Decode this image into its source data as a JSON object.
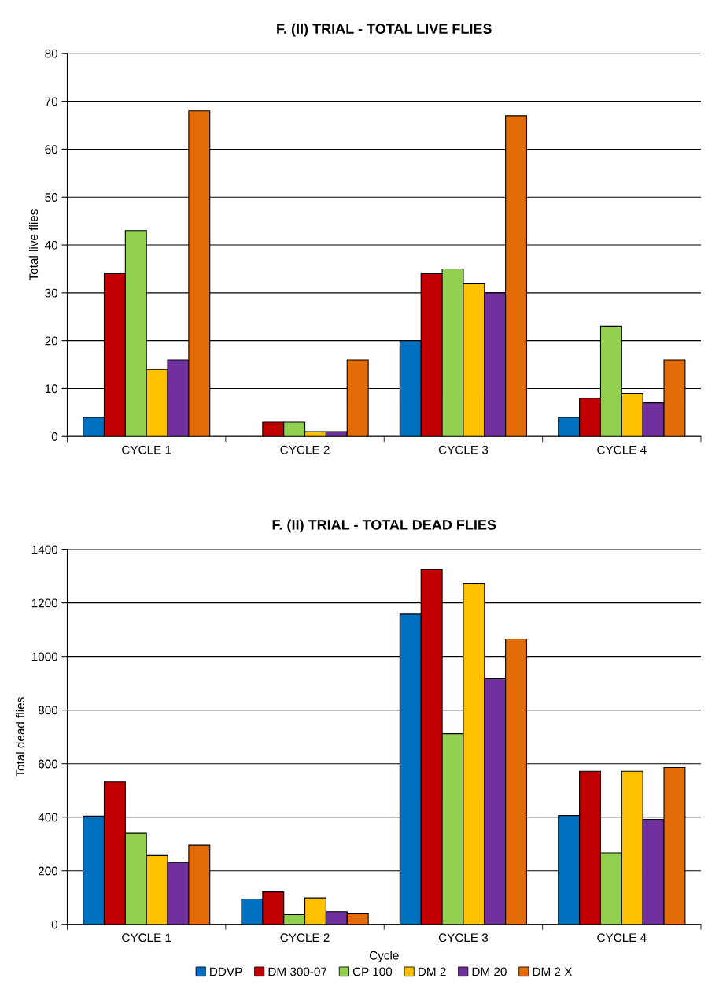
{
  "chart_data": [
    {
      "type": "bar",
      "title": "F. (II) TRIAL - TOTAL LIVE FLIES",
      "ylabel": "Total live flies",
      "categories": [
        "CYCLE 1",
        "CYCLE 2",
        "CYCLE 3",
        "CYCLE 4"
      ],
      "ylim": [
        0,
        80
      ],
      "yticks": [
        0,
        10,
        20,
        30,
        40,
        50,
        60,
        70,
        80
      ],
      "grid": "y",
      "legend": false,
      "series": [
        {
          "color": "#0070c0",
          "values": [
            4,
            0,
            20,
            4
          ]
        },
        {
          "color": "#c00000",
          "values": [
            34,
            3,
            34,
            8
          ]
        },
        {
          "color": "#92d050",
          "values": [
            43,
            3,
            35,
            23
          ]
        },
        {
          "color": "#ffc000",
          "values": [
            14,
            1,
            32,
            9
          ]
        },
        {
          "color": "#7030a0",
          "values": [
            16,
            1,
            30,
            7
          ]
        },
        {
          "color": "#e36c09",
          "values": [
            68,
            16,
            67,
            16
          ]
        }
      ]
    },
    {
      "type": "bar",
      "title": "F. (II) TRIAL - TOTAL DEAD FLIES",
      "xlabel": "Cycle",
      "ylabel": "Total dead flies",
      "categories": [
        "CYCLE 1",
        "CYCLE 2",
        "CYCLE 3",
        "CYCLE 4"
      ],
      "ylim": [
        0,
        1400
      ],
      "yticks": [
        0,
        200,
        400,
        600,
        800,
        1000,
        1200,
        1400
      ],
      "grid": "y",
      "legend": "bottom",
      "series": [
        {
          "name": "DDVP",
          "color": "#0070c0",
          "values": [
            404,
            95,
            1158,
            406
          ]
        },
        {
          "name": "DM 300-07",
          "color": "#c00000",
          "values": [
            532,
            121,
            1325,
            572
          ]
        },
        {
          "name": "CP 100",
          "color": "#92d050",
          "values": [
            340,
            36,
            712,
            267
          ]
        },
        {
          "name": "DM 2",
          "color": "#ffc000",
          "values": [
            257,
            99,
            1274,
            572
          ]
        },
        {
          "name": "DM 20",
          "color": "#7030a0",
          "values": [
            231,
            47,
            918,
            392
          ]
        },
        {
          "name": "DM 2 X",
          "color": "#e36c09",
          "values": [
            296,
            39,
            1065,
            586
          ]
        }
      ]
    }
  ]
}
